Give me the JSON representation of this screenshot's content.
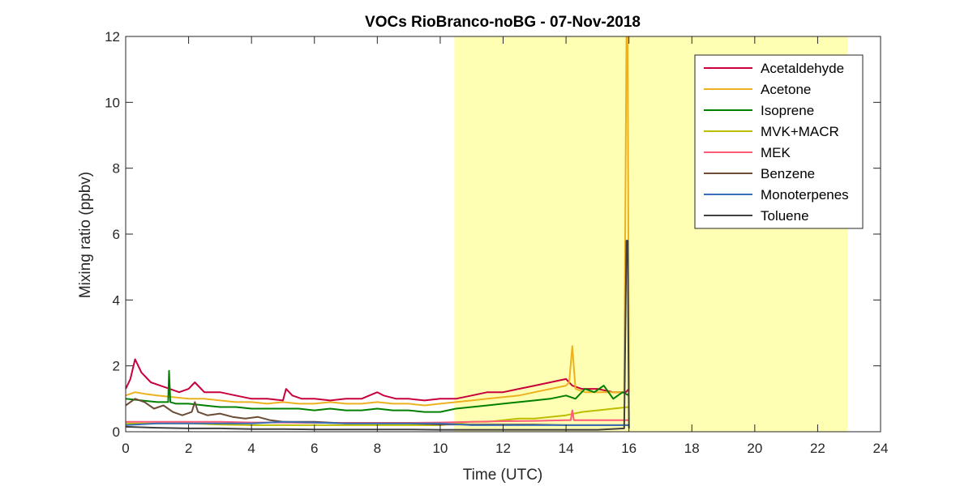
{
  "chart_data": {
    "type": "line",
    "title": "VOCs RioBranco-noBG - 07-Nov-2018",
    "xlabel": "Time (UTC)",
    "ylabel": "Mixing ratio (ppbv)",
    "xlim": [
      0,
      24
    ],
    "ylim": [
      0,
      12
    ],
    "xticks": [
      0,
      2,
      4,
      6,
      8,
      10,
      12,
      14,
      16,
      18,
      20,
      22,
      24
    ],
    "yticks": [
      0,
      2,
      4,
      6,
      8,
      10,
      12
    ],
    "grid": false,
    "legend_position": "top-right",
    "shaded_region": {
      "x_start": 10.45,
      "x_end": 22.95,
      "color": "#ffffb3"
    },
    "series": [
      {
        "name": "Acetaldehyde",
        "color": "#c8003c",
        "x": [
          0,
          0.15,
          0.3,
          0.5,
          0.8,
          1.1,
          1.4,
          1.7,
          2.0,
          2.2,
          2.5,
          3.0,
          3.5,
          4.0,
          4.5,
          5.0,
          5.1,
          5.3,
          5.6,
          6.0,
          6.5,
          7.0,
          7.5,
          8.0,
          8.2,
          8.6,
          9.0,
          9.5,
          10.0,
          10.5,
          11.0,
          11.5,
          12.0,
          12.5,
          13.0,
          13.5,
          14.0,
          14.2,
          14.5,
          15.0,
          15.5,
          15.9,
          16.0
        ],
        "y": [
          1.3,
          1.6,
          2.2,
          1.8,
          1.5,
          1.4,
          1.3,
          1.2,
          1.3,
          1.5,
          1.2,
          1.2,
          1.1,
          1.0,
          1.0,
          0.95,
          1.3,
          1.1,
          1.0,
          1.0,
          0.95,
          1.0,
          1.0,
          1.2,
          1.1,
          1.0,
          1.0,
          0.95,
          1.0,
          1.0,
          1.1,
          1.2,
          1.2,
          1.3,
          1.4,
          1.5,
          1.6,
          1.4,
          1.3,
          1.3,
          1.2,
          1.2,
          1.3
        ]
      },
      {
        "name": "Acetone",
        "color": "#edb120",
        "x": [
          0,
          0.3,
          0.6,
          1.0,
          1.5,
          2.0,
          2.5,
          3.0,
          3.5,
          4.0,
          4.5,
          5.0,
          5.5,
          6.0,
          6.5,
          7.0,
          7.5,
          8.0,
          8.5,
          9.0,
          9.5,
          10.0,
          10.5,
          11.0,
          11.5,
          12.0,
          12.5,
          13.0,
          13.5,
          14.0,
          14.1,
          14.2,
          14.3,
          14.6,
          15.0,
          15.5,
          15.85,
          15.92,
          15.96,
          16.0
        ],
        "y": [
          1.1,
          1.2,
          1.15,
          1.1,
          1.05,
          1.0,
          1.0,
          0.95,
          0.9,
          0.9,
          0.85,
          0.9,
          0.85,
          0.85,
          0.9,
          0.85,
          0.85,
          0.9,
          0.85,
          0.85,
          0.8,
          0.85,
          0.9,
          0.95,
          1.0,
          1.05,
          1.1,
          1.2,
          1.3,
          1.4,
          1.5,
          2.6,
          1.3,
          1.2,
          1.2,
          1.2,
          1.2,
          12.0,
          12.0,
          1.2
        ]
      },
      {
        "name": "Isoprene",
        "color": "#008000",
        "x": [
          0,
          0.5,
          1.0,
          1.35,
          1.38,
          1.42,
          1.6,
          2.0,
          2.5,
          3.0,
          3.5,
          4.0,
          4.5,
          5.0,
          5.5,
          6.0,
          6.5,
          7.0,
          7.5,
          8.0,
          8.5,
          9.0,
          9.5,
          10.0,
          10.5,
          11.0,
          11.5,
          12.0,
          12.5,
          13.0,
          13.5,
          14.0,
          14.3,
          14.6,
          14.9,
          15.2,
          15.5,
          15.8,
          16.0
        ],
        "y": [
          1.0,
          0.95,
          0.9,
          0.9,
          1.85,
          0.9,
          0.85,
          0.85,
          0.8,
          0.75,
          0.75,
          0.7,
          0.7,
          0.7,
          0.7,
          0.65,
          0.7,
          0.65,
          0.65,
          0.7,
          0.65,
          0.65,
          0.6,
          0.6,
          0.7,
          0.75,
          0.8,
          0.85,
          0.9,
          0.95,
          1.0,
          1.1,
          1.0,
          1.3,
          1.2,
          1.4,
          1.0,
          1.2,
          1.1
        ]
      },
      {
        "name": "MVK+MACR",
        "color": "#bdbd00",
        "x": [
          0,
          1.0,
          2.0,
          3.0,
          4.0,
          5.0,
          6.0,
          7.0,
          8.0,
          9.0,
          10.0,
          10.5,
          11.0,
          11.5,
          12.0,
          12.5,
          13.0,
          13.5,
          14.0,
          14.5,
          15.0,
          15.5,
          16.0
        ],
        "y": [
          0.25,
          0.25,
          0.25,
          0.22,
          0.2,
          0.2,
          0.2,
          0.2,
          0.2,
          0.2,
          0.2,
          0.25,
          0.3,
          0.3,
          0.35,
          0.4,
          0.4,
          0.45,
          0.5,
          0.6,
          0.65,
          0.7,
          0.75
        ]
      },
      {
        "name": "MEK",
        "color": "#ff5a78",
        "x": [
          0,
          1.0,
          2.0,
          3.0,
          4.0,
          5.0,
          6.0,
          7.0,
          8.0,
          9.0,
          10.0,
          11.0,
          12.0,
          13.0,
          14.0,
          14.15,
          14.2,
          14.25,
          14.5,
          15.0,
          15.5,
          16.0
        ],
        "y": [
          0.3,
          0.3,
          0.3,
          0.3,
          0.28,
          0.28,
          0.27,
          0.27,
          0.27,
          0.27,
          0.28,
          0.3,
          0.32,
          0.33,
          0.35,
          0.35,
          0.65,
          0.35,
          0.35,
          0.35,
          0.35,
          0.35
        ]
      },
      {
        "name": "Benzene",
        "color": "#6b4c36",
        "x": [
          0,
          0.3,
          0.6,
          0.9,
          1.2,
          1.5,
          1.8,
          2.1,
          2.2,
          2.3,
          2.6,
          3.0,
          3.4,
          3.8,
          4.2,
          4.6,
          5.0,
          5.5,
          6.0,
          7.0,
          8.0,
          9.0,
          10.0,
          11.0,
          12.0,
          13.0,
          14.0,
          15.0,
          15.9,
          16.0
        ],
        "y": [
          0.8,
          1.0,
          0.9,
          0.7,
          0.8,
          0.6,
          0.5,
          0.6,
          0.9,
          0.6,
          0.5,
          0.55,
          0.45,
          0.4,
          0.45,
          0.35,
          0.3,
          0.3,
          0.3,
          0.25,
          0.25,
          0.25,
          0.22,
          0.22,
          0.22,
          0.22,
          0.2,
          0.2,
          0.2,
          0.2
        ]
      },
      {
        "name": "Monoterpenes",
        "color": "#3a6eb5",
        "x": [
          0,
          1.0,
          2.0,
          3.0,
          4.0,
          5.0,
          6.0,
          7.0,
          8.0,
          9.0,
          10.0,
          11.0,
          12.0,
          13.0,
          14.0,
          15.0,
          16.0
        ],
        "y": [
          0.2,
          0.25,
          0.25,
          0.25,
          0.25,
          0.3,
          0.28,
          0.25,
          0.25,
          0.25,
          0.25,
          0.2,
          0.2,
          0.2,
          0.2,
          0.2,
          0.2
        ]
      },
      {
        "name": "Toluene",
        "color": "#404040",
        "x": [
          0,
          1.0,
          2.0,
          3.0,
          4.0,
          5.0,
          6.0,
          7.0,
          8.0,
          9.0,
          10.0,
          11.0,
          12.0,
          13.0,
          14.0,
          15.0,
          15.85,
          15.92,
          15.96,
          16.0
        ],
        "y": [
          0.15,
          0.12,
          0.1,
          0.1,
          0.08,
          0.08,
          0.07,
          0.07,
          0.07,
          0.07,
          0.06,
          0.06,
          0.06,
          0.06,
          0.06,
          0.06,
          0.1,
          5.8,
          5.8,
          0.1
        ]
      }
    ]
  }
}
